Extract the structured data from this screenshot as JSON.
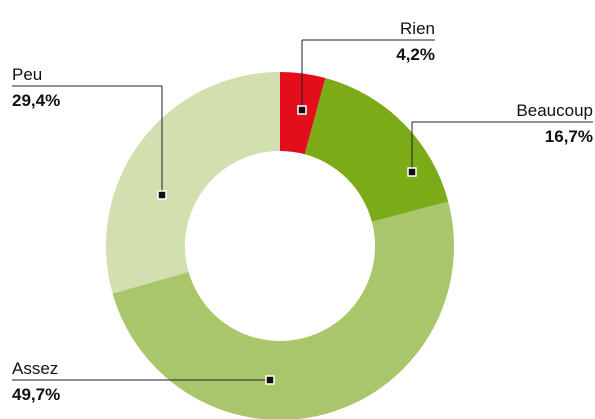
{
  "chart_data": {
    "type": "donut",
    "categories": [
      "Rien",
      "Beaucoup",
      "Assez",
      "Peu"
    ],
    "values": [
      4.2,
      16.7,
      49.7,
      29.4
    ],
    "value_labels": [
      "4,2%",
      "16,7%",
      "49,7%",
      "29,4%"
    ],
    "colors": [
      "#e30d1c",
      "#7bab17",
      "#a9c66b",
      "#d1e0ae"
    ]
  }
}
